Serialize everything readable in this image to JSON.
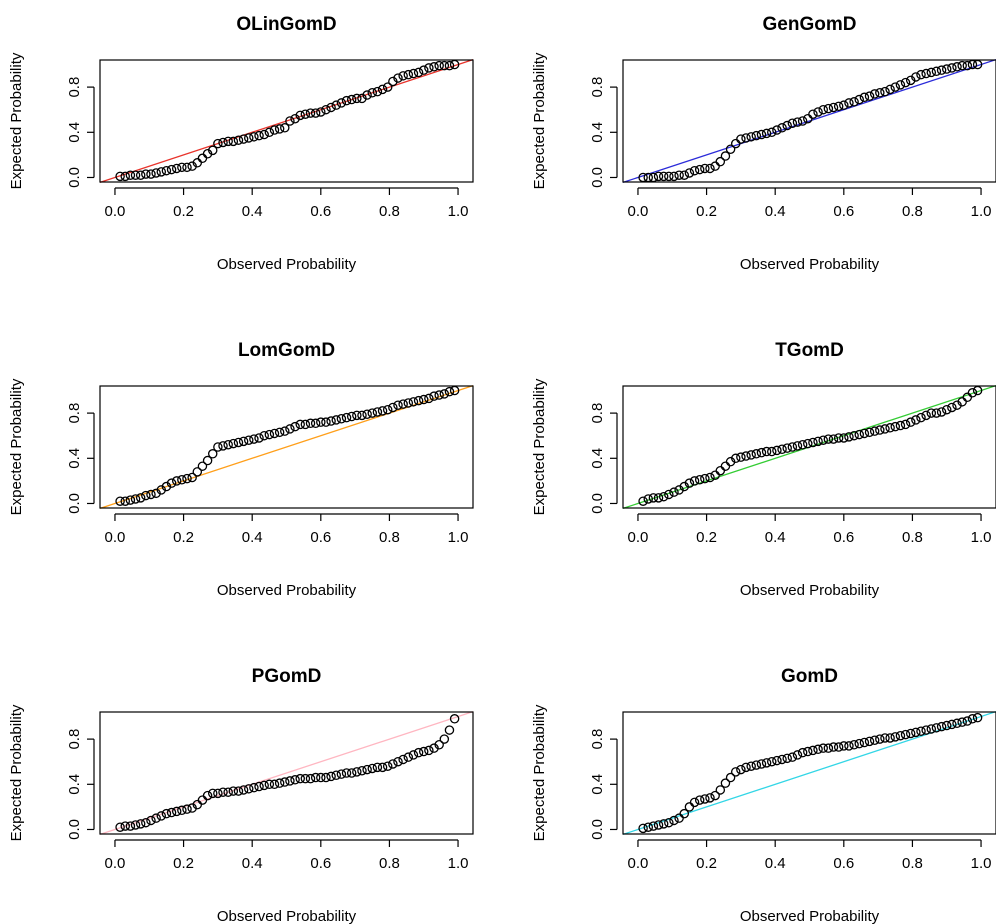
{
  "chart_data": [
    {
      "type": "scatter",
      "title": "OLinGomD",
      "xlabel": "Observed Probability",
      "ylabel": "Expected Probability",
      "xlim": [
        0,
        1
      ],
      "ylim": [
        0,
        1
      ],
      "xticks": [
        "0.0",
        "0.2",
        "0.4",
        "0.6",
        "0.8",
        "1.0"
      ],
      "yticks": [
        "0.0",
        "0.4",
        "0.8"
      ],
      "reference_line_color": "#e8332b",
      "x": [
        0.015,
        0.03,
        0.045,
        0.06,
        0.075,
        0.09,
        0.105,
        0.12,
        0.135,
        0.15,
        0.165,
        0.18,
        0.195,
        0.21,
        0.225,
        0.24,
        0.255,
        0.27,
        0.285,
        0.3,
        0.315,
        0.33,
        0.345,
        0.36,
        0.375,
        0.39,
        0.405,
        0.42,
        0.435,
        0.45,
        0.465,
        0.48,
        0.495,
        0.51,
        0.525,
        0.54,
        0.555,
        0.57,
        0.585,
        0.6,
        0.615,
        0.63,
        0.645,
        0.66,
        0.675,
        0.69,
        0.705,
        0.72,
        0.735,
        0.75,
        0.765,
        0.78,
        0.795,
        0.81,
        0.825,
        0.84,
        0.855,
        0.87,
        0.885,
        0.9,
        0.915,
        0.93,
        0.945,
        0.96,
        0.975,
        0.99
      ],
      "y": [
        0.01,
        0.01,
        0.02,
        0.02,
        0.02,
        0.03,
        0.03,
        0.04,
        0.05,
        0.06,
        0.07,
        0.08,
        0.09,
        0.09,
        0.1,
        0.13,
        0.17,
        0.21,
        0.24,
        0.3,
        0.31,
        0.32,
        0.32,
        0.33,
        0.34,
        0.35,
        0.36,
        0.37,
        0.38,
        0.4,
        0.42,
        0.43,
        0.44,
        0.5,
        0.52,
        0.55,
        0.56,
        0.57,
        0.57,
        0.58,
        0.6,
        0.62,
        0.64,
        0.66,
        0.68,
        0.69,
        0.7,
        0.7,
        0.73,
        0.75,
        0.76,
        0.78,
        0.8,
        0.85,
        0.88,
        0.9,
        0.91,
        0.92,
        0.93,
        0.95,
        0.97,
        0.98,
        0.99,
        0.99,
        0.99,
        1.0
      ]
    },
    {
      "type": "scatter",
      "title": "GenGomD",
      "xlabel": "Observed Probability",
      "ylabel": "Expected Probability",
      "xlim": [
        0,
        1
      ],
      "ylim": [
        0,
        1
      ],
      "xticks": [
        "0.0",
        "0.2",
        "0.4",
        "0.6",
        "0.8",
        "1.0"
      ],
      "yticks": [
        "0.0",
        "0.4",
        "0.8"
      ],
      "reference_line_color": "#2b2bd9",
      "x": [
        0.015,
        0.03,
        0.045,
        0.06,
        0.075,
        0.09,
        0.105,
        0.12,
        0.135,
        0.15,
        0.165,
        0.18,
        0.195,
        0.21,
        0.225,
        0.24,
        0.255,
        0.27,
        0.285,
        0.3,
        0.315,
        0.33,
        0.345,
        0.36,
        0.375,
        0.39,
        0.405,
        0.42,
        0.435,
        0.45,
        0.465,
        0.48,
        0.495,
        0.51,
        0.525,
        0.54,
        0.555,
        0.57,
        0.585,
        0.6,
        0.615,
        0.63,
        0.645,
        0.66,
        0.675,
        0.69,
        0.705,
        0.72,
        0.735,
        0.75,
        0.765,
        0.78,
        0.795,
        0.81,
        0.825,
        0.84,
        0.855,
        0.87,
        0.885,
        0.9,
        0.915,
        0.93,
        0.945,
        0.96,
        0.975,
        0.99
      ],
      "y": [
        0.0,
        0.0,
        0.0,
        0.01,
        0.01,
        0.01,
        0.01,
        0.02,
        0.02,
        0.04,
        0.06,
        0.07,
        0.08,
        0.08,
        0.1,
        0.14,
        0.19,
        0.25,
        0.3,
        0.34,
        0.35,
        0.36,
        0.37,
        0.38,
        0.39,
        0.4,
        0.42,
        0.44,
        0.46,
        0.48,
        0.49,
        0.5,
        0.52,
        0.56,
        0.58,
        0.6,
        0.61,
        0.62,
        0.63,
        0.64,
        0.66,
        0.67,
        0.69,
        0.71,
        0.72,
        0.74,
        0.75,
        0.76,
        0.78,
        0.8,
        0.82,
        0.84,
        0.86,
        0.89,
        0.91,
        0.92,
        0.93,
        0.94,
        0.95,
        0.96,
        0.97,
        0.98,
        0.99,
        0.99,
        1.0,
        1.0
      ]
    },
    {
      "type": "scatter",
      "title": "LomGomD",
      "xlabel": "Observed Probability",
      "ylabel": "Expected Probability",
      "xlim": [
        0,
        1
      ],
      "ylim": [
        0,
        1
      ],
      "xticks": [
        "0.0",
        "0.2",
        "0.4",
        "0.6",
        "0.8",
        "1.0"
      ],
      "yticks": [
        "0.0",
        "0.4",
        "0.8"
      ],
      "reference_line_color": "#ff9f1a",
      "x": [
        0.015,
        0.03,
        0.045,
        0.06,
        0.075,
        0.09,
        0.105,
        0.12,
        0.135,
        0.15,
        0.165,
        0.18,
        0.195,
        0.21,
        0.225,
        0.24,
        0.255,
        0.27,
        0.285,
        0.3,
        0.315,
        0.33,
        0.345,
        0.36,
        0.375,
        0.39,
        0.405,
        0.42,
        0.435,
        0.45,
        0.465,
        0.48,
        0.495,
        0.51,
        0.525,
        0.54,
        0.555,
        0.57,
        0.585,
        0.6,
        0.615,
        0.63,
        0.645,
        0.66,
        0.675,
        0.69,
        0.705,
        0.72,
        0.735,
        0.75,
        0.765,
        0.78,
        0.795,
        0.81,
        0.825,
        0.84,
        0.855,
        0.87,
        0.885,
        0.9,
        0.915,
        0.93,
        0.945,
        0.96,
        0.975,
        0.99
      ],
      "y": [
        0.02,
        0.02,
        0.03,
        0.04,
        0.05,
        0.07,
        0.08,
        0.09,
        0.12,
        0.15,
        0.18,
        0.2,
        0.21,
        0.22,
        0.23,
        0.28,
        0.33,
        0.38,
        0.44,
        0.5,
        0.51,
        0.52,
        0.53,
        0.54,
        0.55,
        0.56,
        0.57,
        0.58,
        0.6,
        0.61,
        0.62,
        0.63,
        0.64,
        0.66,
        0.68,
        0.7,
        0.7,
        0.71,
        0.71,
        0.72,
        0.72,
        0.73,
        0.74,
        0.75,
        0.76,
        0.77,
        0.78,
        0.78,
        0.79,
        0.8,
        0.81,
        0.82,
        0.83,
        0.85,
        0.87,
        0.88,
        0.89,
        0.9,
        0.91,
        0.92,
        0.93,
        0.95,
        0.96,
        0.97,
        0.99,
        1.0
      ]
    },
    {
      "type": "scatter",
      "title": "TGomD",
      "xlabel": "Observed Probability",
      "ylabel": "Expected Probability",
      "xlim": [
        0,
        1
      ],
      "ylim": [
        0,
        1
      ],
      "xticks": [
        "0.0",
        "0.2",
        "0.4",
        "0.6",
        "0.8",
        "1.0"
      ],
      "yticks": [
        "0.0",
        "0.4",
        "0.8"
      ],
      "reference_line_color": "#33cc33",
      "x": [
        0.015,
        0.03,
        0.045,
        0.06,
        0.075,
        0.09,
        0.105,
        0.12,
        0.135,
        0.15,
        0.165,
        0.18,
        0.195,
        0.21,
        0.225,
        0.24,
        0.255,
        0.27,
        0.285,
        0.3,
        0.315,
        0.33,
        0.345,
        0.36,
        0.375,
        0.39,
        0.405,
        0.42,
        0.435,
        0.45,
        0.465,
        0.48,
        0.495,
        0.51,
        0.525,
        0.54,
        0.555,
        0.57,
        0.585,
        0.6,
        0.615,
        0.63,
        0.645,
        0.66,
        0.675,
        0.69,
        0.705,
        0.72,
        0.735,
        0.75,
        0.765,
        0.78,
        0.795,
        0.81,
        0.825,
        0.84,
        0.855,
        0.87,
        0.885,
        0.9,
        0.915,
        0.93,
        0.945,
        0.96,
        0.975,
        0.99
      ],
      "y": [
        0.02,
        0.04,
        0.05,
        0.05,
        0.06,
        0.08,
        0.1,
        0.12,
        0.15,
        0.18,
        0.2,
        0.21,
        0.22,
        0.23,
        0.25,
        0.29,
        0.33,
        0.37,
        0.4,
        0.41,
        0.42,
        0.43,
        0.44,
        0.45,
        0.46,
        0.46,
        0.47,
        0.48,
        0.49,
        0.5,
        0.51,
        0.52,
        0.53,
        0.54,
        0.55,
        0.56,
        0.57,
        0.57,
        0.58,
        0.58,
        0.59,
        0.6,
        0.61,
        0.62,
        0.63,
        0.64,
        0.65,
        0.66,
        0.67,
        0.68,
        0.69,
        0.7,
        0.72,
        0.74,
        0.76,
        0.78,
        0.8,
        0.8,
        0.81,
        0.83,
        0.85,
        0.87,
        0.9,
        0.94,
        0.98,
        1.0
      ]
    },
    {
      "type": "scatter",
      "title": "PGomD",
      "xlabel": "Observed Probability",
      "ylabel": "Expected Probability",
      "xlim": [
        0,
        1
      ],
      "ylim": [
        0,
        1
      ],
      "xticks": [
        "0.0",
        "0.2",
        "0.4",
        "0.6",
        "0.8",
        "1.0"
      ],
      "yticks": [
        "0.0",
        "0.4",
        "0.8"
      ],
      "reference_line_color": "#ffb6c1",
      "x": [
        0.015,
        0.03,
        0.045,
        0.06,
        0.075,
        0.09,
        0.105,
        0.12,
        0.135,
        0.15,
        0.165,
        0.18,
        0.195,
        0.21,
        0.225,
        0.24,
        0.255,
        0.27,
        0.285,
        0.3,
        0.315,
        0.33,
        0.345,
        0.36,
        0.375,
        0.39,
        0.405,
        0.42,
        0.435,
        0.45,
        0.465,
        0.48,
        0.495,
        0.51,
        0.525,
        0.54,
        0.555,
        0.57,
        0.585,
        0.6,
        0.615,
        0.63,
        0.645,
        0.66,
        0.675,
        0.69,
        0.705,
        0.72,
        0.735,
        0.75,
        0.765,
        0.78,
        0.795,
        0.81,
        0.825,
        0.84,
        0.855,
        0.87,
        0.885,
        0.9,
        0.915,
        0.93,
        0.945,
        0.96,
        0.975,
        0.99
      ],
      "y": [
        0.02,
        0.03,
        0.03,
        0.04,
        0.05,
        0.06,
        0.08,
        0.1,
        0.12,
        0.14,
        0.15,
        0.16,
        0.17,
        0.18,
        0.19,
        0.22,
        0.26,
        0.3,
        0.32,
        0.32,
        0.33,
        0.33,
        0.34,
        0.34,
        0.35,
        0.36,
        0.37,
        0.38,
        0.39,
        0.4,
        0.4,
        0.41,
        0.42,
        0.43,
        0.44,
        0.45,
        0.45,
        0.45,
        0.46,
        0.46,
        0.46,
        0.47,
        0.48,
        0.49,
        0.5,
        0.5,
        0.51,
        0.52,
        0.53,
        0.54,
        0.55,
        0.55,
        0.56,
        0.58,
        0.6,
        0.62,
        0.64,
        0.66,
        0.68,
        0.69,
        0.7,
        0.72,
        0.75,
        0.8,
        0.88,
        0.98
      ]
    },
    {
      "type": "scatter",
      "title": "GomD",
      "xlabel": "Observed Probability",
      "ylabel": "Expected Probability",
      "xlim": [
        0,
        1
      ],
      "ylim": [
        0,
        1
      ],
      "xticks": [
        "0.0",
        "0.2",
        "0.4",
        "0.6",
        "0.8",
        "1.0"
      ],
      "yticks": [
        "0.0",
        "0.4",
        "0.8"
      ],
      "reference_line_color": "#33d6e6",
      "x": [
        0.015,
        0.03,
        0.045,
        0.06,
        0.075,
        0.09,
        0.105,
        0.12,
        0.135,
        0.15,
        0.165,
        0.18,
        0.195,
        0.21,
        0.225,
        0.24,
        0.255,
        0.27,
        0.285,
        0.3,
        0.315,
        0.33,
        0.345,
        0.36,
        0.375,
        0.39,
        0.405,
        0.42,
        0.435,
        0.45,
        0.465,
        0.48,
        0.495,
        0.51,
        0.525,
        0.54,
        0.555,
        0.57,
        0.585,
        0.6,
        0.615,
        0.63,
        0.645,
        0.66,
        0.675,
        0.69,
        0.705,
        0.72,
        0.735,
        0.75,
        0.765,
        0.78,
        0.795,
        0.81,
        0.825,
        0.84,
        0.855,
        0.87,
        0.885,
        0.9,
        0.915,
        0.93,
        0.945,
        0.96,
        0.975,
        0.99
      ],
      "y": [
        0.01,
        0.02,
        0.03,
        0.04,
        0.05,
        0.06,
        0.08,
        0.1,
        0.14,
        0.2,
        0.24,
        0.26,
        0.27,
        0.28,
        0.3,
        0.35,
        0.41,
        0.46,
        0.51,
        0.53,
        0.55,
        0.56,
        0.57,
        0.58,
        0.59,
        0.6,
        0.61,
        0.62,
        0.63,
        0.64,
        0.66,
        0.68,
        0.69,
        0.7,
        0.71,
        0.72,
        0.72,
        0.73,
        0.73,
        0.74,
        0.74,
        0.75,
        0.76,
        0.77,
        0.78,
        0.79,
        0.8,
        0.81,
        0.81,
        0.82,
        0.83,
        0.84,
        0.85,
        0.86,
        0.87,
        0.88,
        0.89,
        0.9,
        0.91,
        0.92,
        0.93,
        0.94,
        0.95,
        0.96,
        0.98,
        0.99
      ]
    }
  ]
}
